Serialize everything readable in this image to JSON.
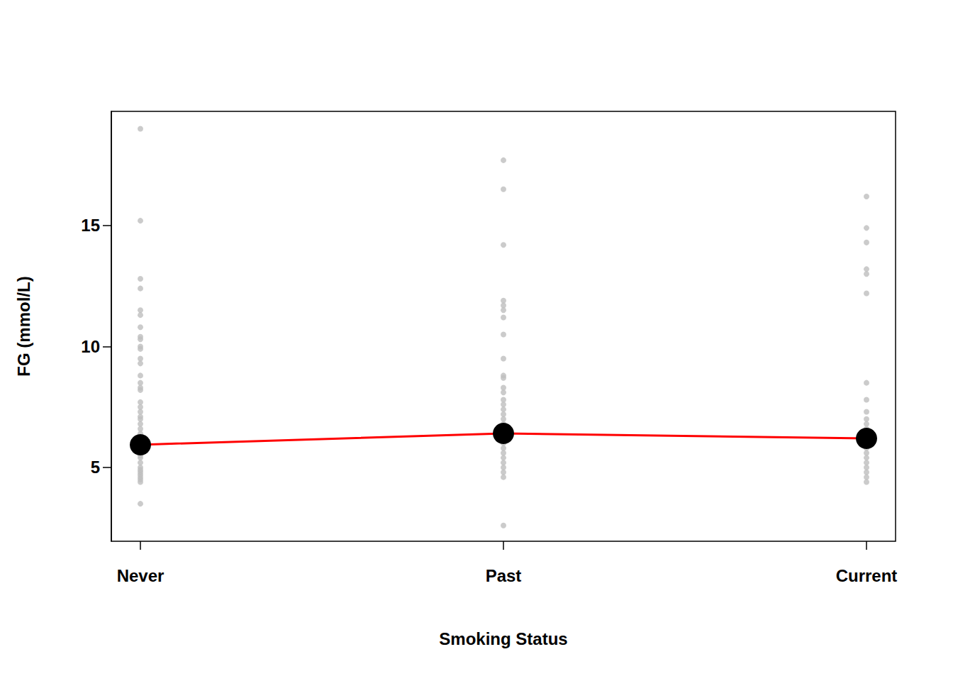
{
  "chart_data": {
    "type": "scatter",
    "x_label": "Smoking Status",
    "y_label": "FG (mmol/L)",
    "categories": [
      "Never",
      "Past",
      "Current"
    ],
    "ylim": [
      1.95,
      19.72
    ],
    "yticks": [
      5,
      10,
      15
    ],
    "grid": false,
    "series": [
      {
        "type": "scatter",
        "color": "#bebebe",
        "marker": "circle",
        "values": [
          [
            19.0,
            15.2,
            12.8,
            12.4,
            11.5,
            11.3,
            10.8,
            10.4,
            10.3,
            10.0,
            9.9,
            9.5,
            9.3,
            8.8,
            8.5,
            8.3,
            8.2,
            7.7,
            7.5,
            7.3,
            7.1,
            7.0,
            6.8,
            6.6,
            6.4,
            6.2,
            6.0,
            5.8,
            5.6,
            5.5,
            5.4,
            5.2,
            5.0,
            4.9,
            4.8,
            4.7,
            4.6,
            4.5,
            4.4,
            3.5
          ],
          [
            17.7,
            16.5,
            14.2,
            11.9,
            11.7,
            11.5,
            11.2,
            10.5,
            9.5,
            8.8,
            8.7,
            8.3,
            8.1,
            7.8,
            7.6,
            7.4,
            7.2,
            7.0,
            6.8,
            6.6,
            6.4,
            6.2,
            6.0,
            5.8,
            5.6,
            5.4,
            5.2,
            5.0,
            4.8,
            4.6,
            2.6
          ],
          [
            16.2,
            14.9,
            14.3,
            13.2,
            13.0,
            12.2,
            8.5,
            7.8,
            7.3,
            7.0,
            6.8,
            6.6,
            6.4,
            6.2,
            6.0,
            5.8,
            5.6,
            5.4,
            5.2,
            5.0,
            4.8,
            4.6,
            4.4
          ]
        ]
      },
      {
        "type": "line",
        "color": "#ff0000",
        "marker": "circle",
        "line_style": "solid",
        "values": [
          5.94,
          6.41,
          6.2
        ]
      }
    ]
  }
}
